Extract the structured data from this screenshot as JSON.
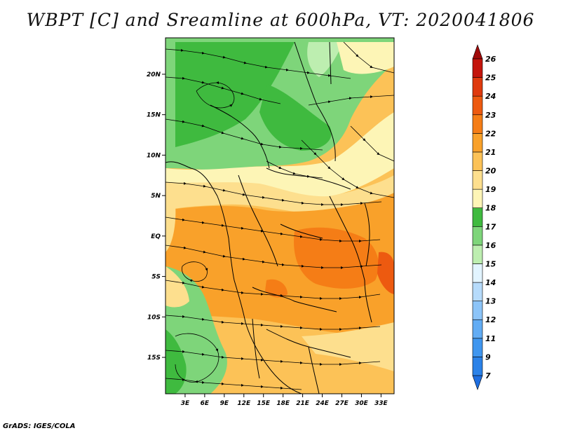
{
  "title": "WBPT [C] and Sreamline at 600hPa, VT: 2020041806",
  "credit": "GrADS: IGES/COLA",
  "map": {
    "lon_ticks": [
      "3E",
      "6E",
      "9E",
      "12E",
      "15E",
      "18E",
      "21E",
      "24E",
      "27E",
      "30E",
      "33E"
    ],
    "lat_ticks": [
      "20N",
      "15N",
      "10N",
      "5N",
      "EQ",
      "5S",
      "10S",
      "15S"
    ],
    "lon_range": [
      0,
      35
    ],
    "lat_range": [
      -19.5,
      24.5
    ]
  },
  "colorbar": {
    "labels": [
      "7",
      "9",
      "11",
      "12",
      "13",
      "14",
      "15",
      "16",
      "17",
      "18",
      "19",
      "20",
      "21",
      "22",
      "23",
      "24",
      "25",
      "26"
    ],
    "colors": [
      "#1e6ee0",
      "#2b82e8",
      "#3f96ef",
      "#62acf4",
      "#8cc4f8",
      "#b6dbfb",
      "#e2f4ff",
      "#bdeeb0",
      "#7ed57a",
      "#3fba3f",
      "#fdf5b6",
      "#fddf8e",
      "#fcc257",
      "#f9a12a",
      "#f57d16",
      "#ed5a10",
      "#df3a0e",
      "#c4150c",
      "#a00a0a"
    ]
  }
}
